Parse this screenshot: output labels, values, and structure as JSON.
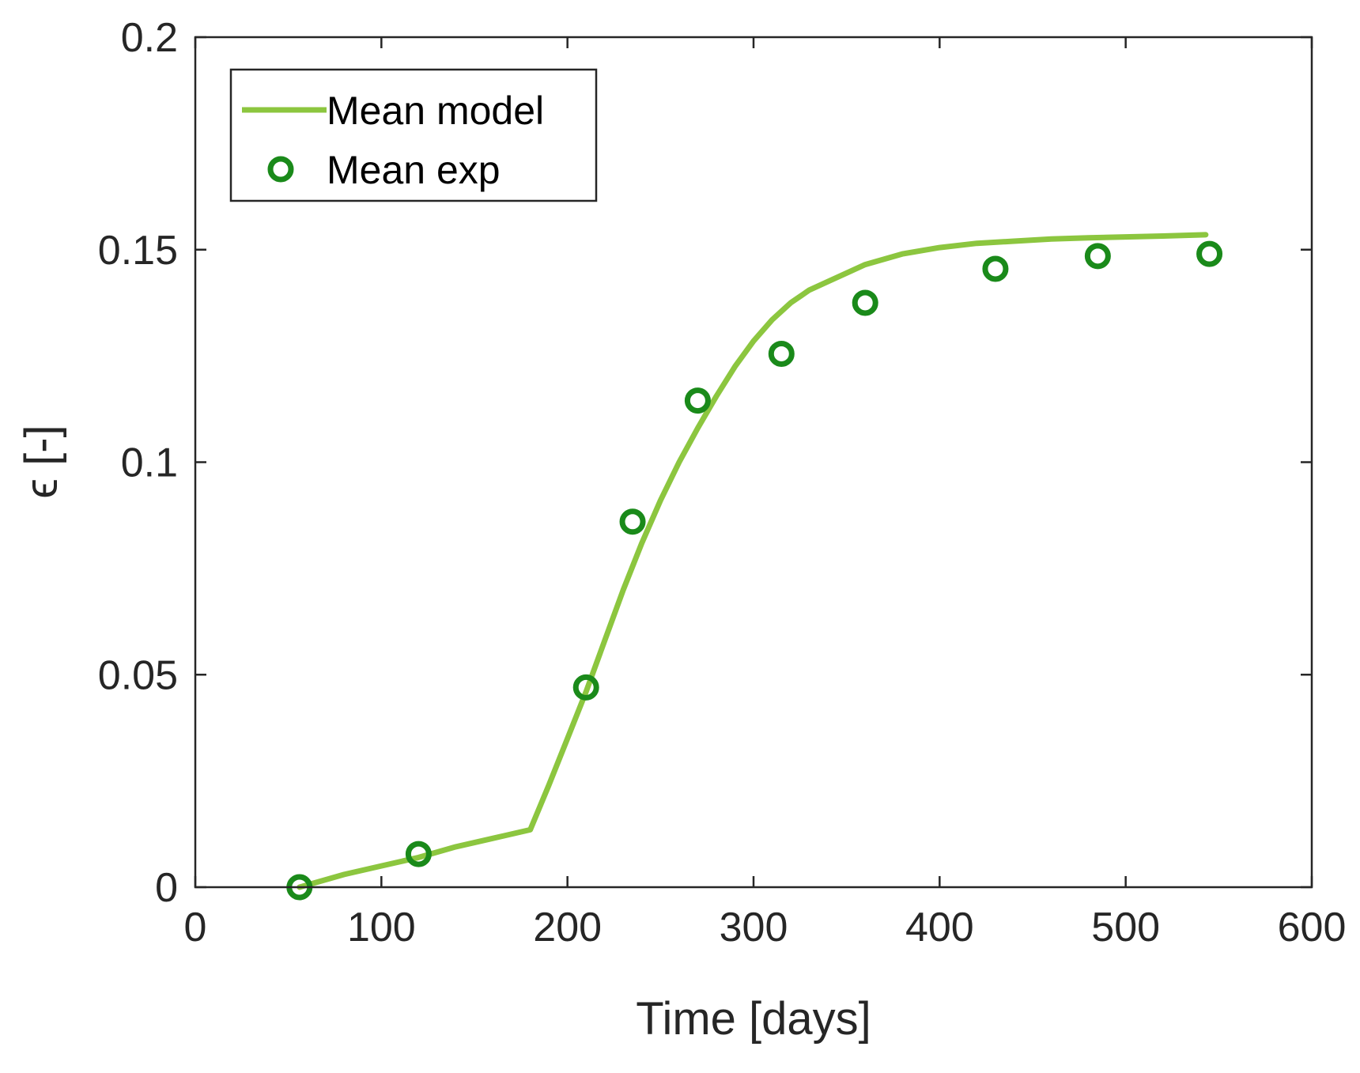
{
  "chart_data": {
    "type": "line",
    "title": "",
    "xlabel": "Time [days]",
    "ylabel": "ϵ [-]",
    "xlim": [
      0,
      600
    ],
    "ylim": [
      0,
      0.2
    ],
    "xticks": [
      0,
      100,
      200,
      300,
      400,
      500,
      600
    ],
    "xtick_labels": [
      "0",
      "100",
      "200",
      "300",
      "400",
      "500",
      "600"
    ],
    "yticks": [
      0,
      0.05,
      0.1,
      0.15,
      0.2
    ],
    "ytick_labels": [
      "0",
      "0.05",
      "0.1",
      "0.15",
      "0.2"
    ],
    "legend_position": "top-left",
    "series": [
      {
        "name": "Mean model",
        "kind": "line",
        "color": "#8cc63f",
        "x": [
          56,
          80,
          100,
          120,
          140,
          160,
          180,
          190,
          200,
          210,
          220,
          230,
          240,
          250,
          260,
          270,
          280,
          290,
          300,
          310,
          320,
          330,
          340,
          350,
          360,
          380,
          400,
          420,
          440,
          460,
          480,
          500,
          520,
          543
        ],
        "y": [
          0,
          0.003,
          0.005,
          0.007,
          0.0095,
          0.0115,
          0.0135,
          0.024,
          0.035,
          0.046,
          0.058,
          0.07,
          0.081,
          0.091,
          0.1,
          0.108,
          0.1155,
          0.1225,
          0.1285,
          0.1335,
          0.1375,
          0.1405,
          0.1425,
          0.1445,
          0.1465,
          0.149,
          0.1505,
          0.1515,
          0.152,
          0.1525,
          0.1528,
          0.153,
          0.1532,
          0.1535
        ]
      },
      {
        "name": "Mean exp",
        "kind": "scatter",
        "color": "#1a8a1a",
        "x": [
          56,
          120,
          210,
          235,
          270,
          315,
          360,
          430,
          485,
          545
        ],
        "y": [
          0,
          0.0078,
          0.047,
          0.086,
          0.1145,
          0.1255,
          0.1375,
          0.1455,
          0.1485,
          0.149
        ]
      }
    ]
  }
}
